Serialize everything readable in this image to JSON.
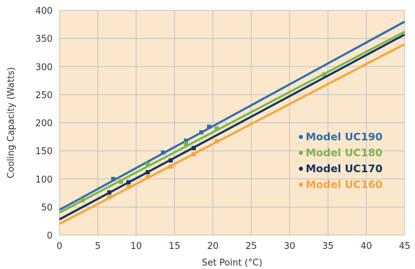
{
  "chart_data": {
    "type": "line",
    "title": "",
    "xlabel": "Set Point (°C)",
    "ylabel": "Cooling Capacity (Watts)",
    "xlim": [
      0,
      45
    ],
    "ylim": [
      0,
      400
    ],
    "x_ticks": [
      0,
      5,
      10,
      15,
      20,
      25,
      30,
      35,
      40,
      45
    ],
    "y_ticks": [
      0,
      50,
      100,
      150,
      200,
      250,
      300,
      350,
      400
    ],
    "grid": true,
    "plot_background": "#fbe7cc",
    "legend_position": "right",
    "series": [
      {
        "name": "Model UC190",
        "color": "#2a6fb0",
        "line": [
          [
            0,
            45
          ],
          [
            45,
            380
          ]
        ],
        "points": [
          [
            7,
            100
          ],
          [
            13.5,
            147
          ],
          [
            16.5,
            168
          ],
          [
            18.5,
            183
          ],
          [
            19.5,
            193
          ]
        ]
      },
      {
        "name": "Model UC180",
        "color": "#7ab648",
        "line": [
          [
            0,
            40
          ],
          [
            45,
            362
          ]
        ],
        "points": [
          [
            3,
            62
          ],
          [
            8,
            95
          ],
          [
            11.5,
            126
          ],
          [
            16.5,
            163
          ],
          [
            20.5,
            190
          ],
          [
            34.5,
            286
          ]
        ]
      },
      {
        "name": "Model UC170",
        "color": "#0f3461",
        "line": [
          [
            0,
            28
          ],
          [
            45,
            357
          ]
        ],
        "points": [
          [
            6.5,
            76
          ],
          [
            9,
            94
          ],
          [
            11.5,
            112
          ],
          [
            14.5,
            133
          ],
          [
            17.5,
            155
          ]
        ]
      },
      {
        "name": "Model UC160",
        "color": "#f6a43a",
        "line": [
          [
            0,
            20
          ],
          [
            45,
            340
          ]
        ],
        "points": [
          [
            6.5,
            68
          ],
          [
            9,
            86
          ],
          [
            11.5,
            104
          ],
          [
            14.5,
            122
          ],
          [
            17.5,
            144
          ],
          [
            20.5,
            167
          ]
        ]
      }
    ]
  }
}
